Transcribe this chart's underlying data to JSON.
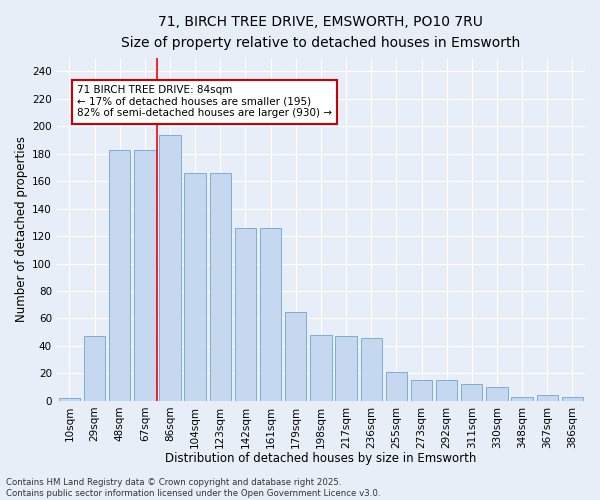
{
  "title_line1": "71, BIRCH TREE DRIVE, EMSWORTH, PO10 7RU",
  "title_line2": "Size of property relative to detached houses in Emsworth",
  "xlabel": "Distribution of detached houses by size in Emsworth",
  "ylabel": "Number of detached properties",
  "categories": [
    "10sqm",
    "29sqm",
    "48sqm",
    "67sqm",
    "86sqm",
    "104sqm",
    "123sqm",
    "142sqm",
    "161sqm",
    "179sqm",
    "198sqm",
    "217sqm",
    "236sqm",
    "255sqm",
    "273sqm",
    "292sqm",
    "311sqm",
    "330sqm",
    "348sqm",
    "367sqm",
    "386sqm"
  ],
  "bar_values": [
    2,
    47,
    183,
    183,
    194,
    166,
    166,
    126,
    126,
    65,
    48,
    47,
    46,
    21,
    15,
    15,
    12,
    10,
    3,
    4,
    3
  ],
  "ylim": [
    0,
    250
  ],
  "yticks": [
    0,
    20,
    40,
    60,
    80,
    100,
    120,
    140,
    160,
    180,
    200,
    220,
    240
  ],
  "bar_color": "#c5d8f0",
  "bar_edge_color": "#7bafd4",
  "bg_color": "#e8eef8",
  "grid_color": "#ffffff",
  "red_line_x": 3.5,
  "annotation_text": "71 BIRCH TREE DRIVE: 84sqm\n← 17% of detached houses are smaller (195)\n82% of semi-detached houses are larger (930) →",
  "annotation_box_color": "#ffffff",
  "annotation_border_color": "#cc0000",
  "footer_text": "Contains HM Land Registry data © Crown copyright and database right 2025.\nContains public sector information licensed under the Open Government Licence v3.0.",
  "title_fontsize": 10,
  "subtitle_fontsize": 9,
  "axis_label_fontsize": 8.5,
  "tick_fontsize": 7.5,
  "annotation_fontsize": 7.5
}
